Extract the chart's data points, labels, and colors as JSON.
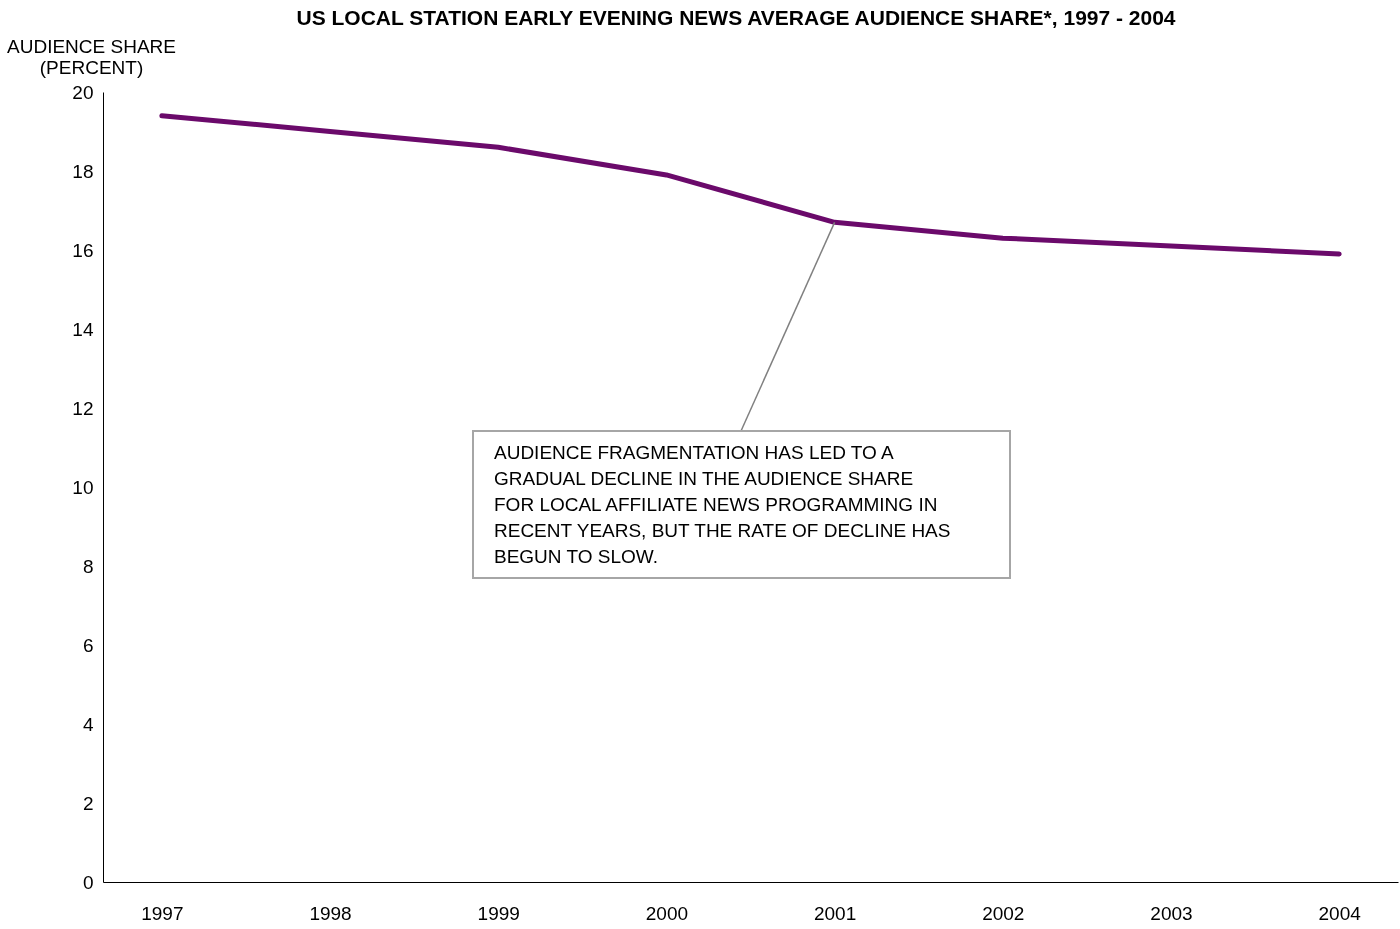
{
  "chart_data": {
    "type": "line",
    "title": "US LOCAL STATION EARLY EVENING NEWS AVERAGE AUDIENCE SHARE*, 1997 - 2004",
    "ylabel": "AUDIENCE SHARE\n(PERCENT)",
    "categories": [
      "1997",
      "1998",
      "1999",
      "2000",
      "2001",
      "2002",
      "2003",
      "2004"
    ],
    "series": [
      {
        "color": "#6b0a6b",
        "values": [
          19.4,
          19.0,
          18.6,
          17.9,
          16.7,
          16.3,
          16.1,
          15.9
        ]
      }
    ],
    "ylim": [
      0,
      20
    ],
    "yticks": [
      0,
      2,
      4,
      6,
      8,
      10,
      12,
      14,
      16,
      18,
      20
    ],
    "grid": false,
    "legend": false,
    "marker": "none",
    "line_style": "solid",
    "annotations": [
      {
        "text": "AUDIENCE FRAGMENTATION HAS LED TO A\nGRADUAL DECLINE IN THE AUDIENCE SHARE\nFOR LOCAL AFFILIATE NEWS PROGRAMMING IN\nRECENT YEARS, BUT THE RATE OF DECLINE HAS\nBEGUN TO SLOW.",
        "x": "2001",
        "y": 16.7
      }
    ]
  }
}
